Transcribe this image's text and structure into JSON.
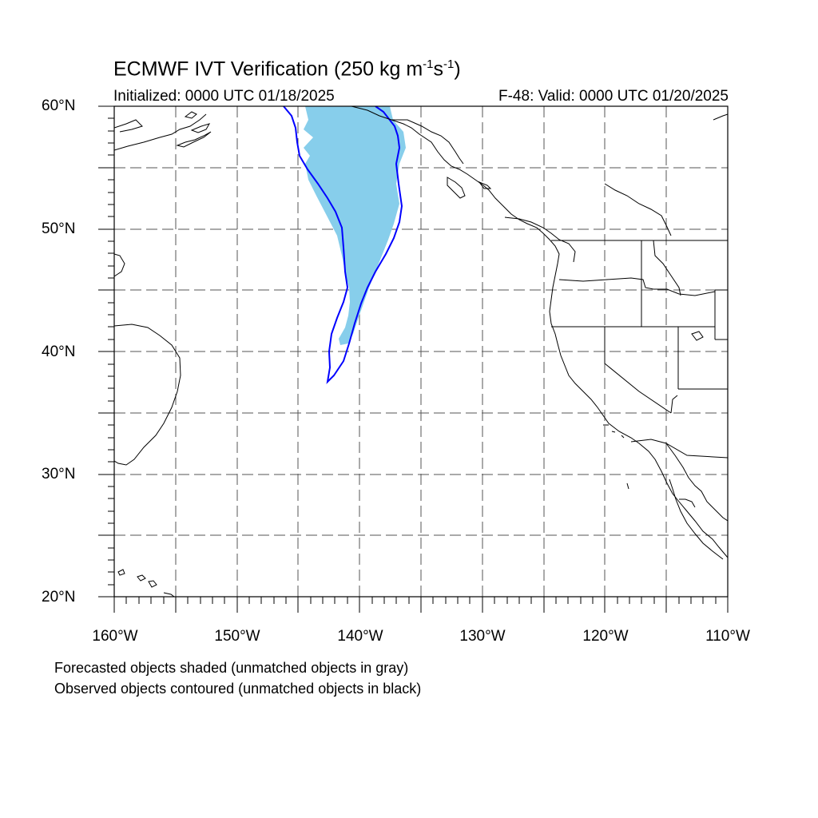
{
  "title": {
    "prefix": "ECMWF IVT Verification (250 kg m",
    "exp1": "-1",
    "mid": "s",
    "exp2": "-1",
    "suffix": ")"
  },
  "initialized": "Initialized: 0000 UTC 01/18/2025",
  "valid": "F-48: Valid: 0000 UTC 01/20/2025",
  "lat_labels": [
    "60°N",
    "50°N",
    "40°N",
    "30°N",
    "20°N"
  ],
  "lon_labels": [
    "160°W",
    "150°W",
    "140°W",
    "130°W",
    "120°W",
    "110°W"
  ],
  "notes": {
    "line1": "Forecasted objects shaded (unmatched objects in gray)",
    "line2": "Observed objects contoured (unmatched objects in black)"
  },
  "map": {
    "lon_range": [
      -160,
      -110
    ],
    "lat_range": [
      20,
      60
    ],
    "forecast_fill_color": "#87ceeb",
    "observed_contour_color": "#0000ff",
    "coast_color": "#000000",
    "grid_style": "dashed"
  }
}
